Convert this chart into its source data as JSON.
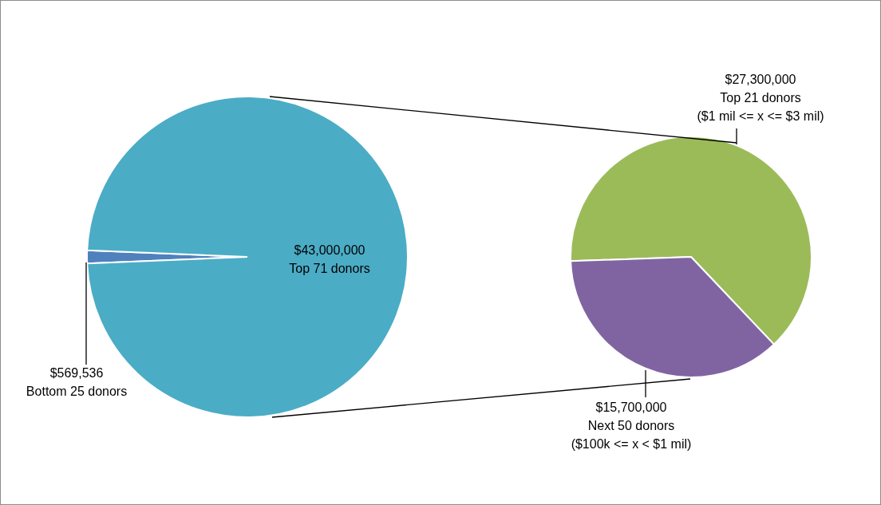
{
  "chart_data": [
    {
      "type": "pie",
      "categories": [
        "Bottom 25 donors",
        "Top 71 donors"
      ],
      "values": [
        569536,
        43000000
      ],
      "colors": [
        "#4f81bd",
        "#4bacc6"
      ],
      "value_labels": [
        "$569,536",
        "$43,000,000"
      ]
    },
    {
      "type": "pie",
      "categories": [
        "Top 21 donors ($1 mil <= x <= $3 mil)",
        "Next 50 donors ($100k <= x < $1 mil)"
      ],
      "values": [
        27300000,
        15700000
      ],
      "colors": [
        "#9bbb59",
        "#8064a2"
      ],
      "value_labels": [
        "$27,300,000",
        "$15,700,000"
      ]
    }
  ]
}
